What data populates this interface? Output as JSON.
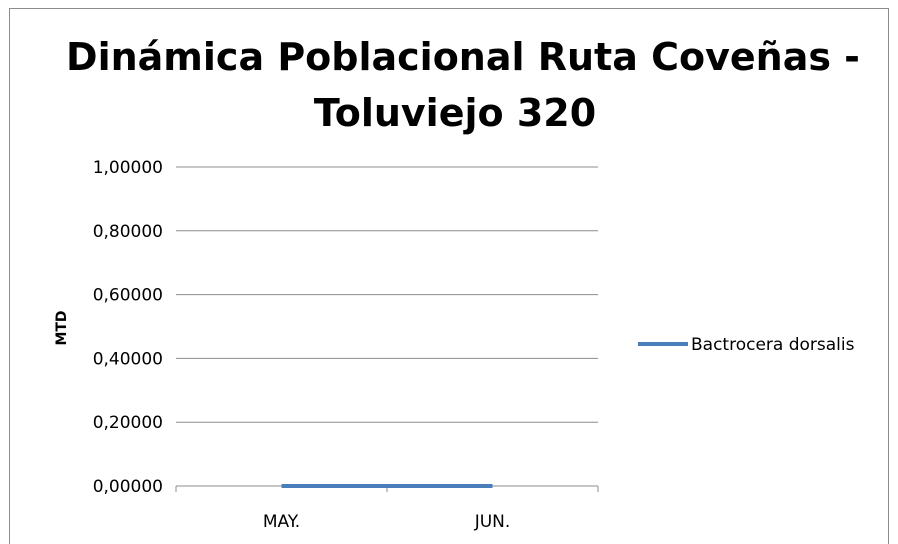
{
  "chart_data": {
    "type": "line",
    "title_lines": [
      "Dinámica Poblacional Ruta Coveñas -",
      "Toluviejo 320"
    ],
    "xlabel": "",
    "ylabel": "MTD",
    "categories": [
      "MAY.",
      "JUN."
    ],
    "series": [
      {
        "name": "Bactrocera dorsalis",
        "values": [
          0,
          0
        ]
      }
    ],
    "ylim": [
      0,
      1
    ],
    "yticks": [
      "0,00000",
      "0,20000",
      "0,40000",
      "0,60000",
      "0,80000",
      "1,00000"
    ],
    "ytick_values": [
      0,
      0.2,
      0.4,
      0.6,
      0.8,
      1.0
    ],
    "grid": true,
    "legend_position": "right",
    "colors": {
      "series": "#4a7ebb",
      "grid": "#8c8c8c",
      "frame": "#8c8c8c"
    }
  }
}
